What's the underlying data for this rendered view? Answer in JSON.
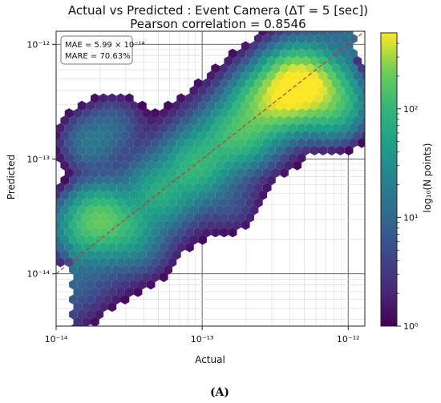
{
  "chart_data": {
    "type": "heatmap",
    "subtype": "hexbin",
    "title": "Actual vs Predicted : Event Camera (ΔT = 5 [sec])",
    "subtitle": "Pearson correlation  = 0.8546",
    "xlabel": "Actual",
    "ylabel": "Predicted",
    "x_scale": "log",
    "y_scale": "log",
    "xlim": [
      1e-14,
      1.3e-12
    ],
    "ylim": [
      3.5e-15,
      1.3e-12
    ],
    "x_ticks": [
      {
        "value": 1e-14,
        "label": "10⁻¹⁴"
      },
      {
        "value": 1e-13,
        "label": "10⁻¹³"
      },
      {
        "value": 1e-12,
        "label": "10⁻¹²"
      }
    ],
    "y_ticks": [
      {
        "value": 1e-14,
        "label": "10⁻¹⁴"
      },
      {
        "value": 1e-13,
        "label": "10⁻¹³"
      },
      {
        "value": 1e-12,
        "label": "10⁻¹²"
      }
    ],
    "grid": true,
    "reference_line": {
      "kind": "y = x",
      "style": "dashed",
      "color": "#c0392b"
    },
    "annotation_lines": [
      "MAE = 5.99 × 10⁻¹⁴",
      "MARE = 70.63%"
    ],
    "colorbar": {
      "label": "log₁₀(N points)",
      "scale": "log",
      "min": 1,
      "max": 500,
      "ticks": [
        {
          "value": 1,
          "label": "10⁰"
        },
        {
          "value": 10,
          "label": "10¹"
        },
        {
          "value": 100,
          "label": "10²"
        }
      ],
      "colormap": "viridis"
    },
    "density_regions": [
      {
        "x": 2e-14,
        "y": 3e-14,
        "count": 150
      },
      {
        "x": 1.5e-14,
        "y": 2.5e-14,
        "count": 50
      },
      {
        "x": 3e-14,
        "y": 2.5e-14,
        "count": 60
      },
      {
        "x": 5e-14,
        "y": 5e-14,
        "count": 60
      },
      {
        "x": 8e-14,
        "y": 7.5e-14,
        "count": 50
      },
      {
        "x": 1e-13,
        "y": 1e-13,
        "count": 60
      },
      {
        "x": 1.5e-13,
        "y": 1.5e-13,
        "count": 70
      },
      {
        "x": 2e-13,
        "y": 1.8e-13,
        "count": 80
      },
      {
        "x": 2.5e-13,
        "y": 2.8e-13,
        "count": 150
      },
      {
        "x": 3.5e-13,
        "y": 3.5e-13,
        "count": 300
      },
      {
        "x": 4.5e-13,
        "y": 4.5e-13,
        "count": 500
      },
      {
        "x": 6e-13,
        "y": 4e-13,
        "count": 250
      },
      {
        "x": 8e-13,
        "y": 3e-13,
        "count": 100
      },
      {
        "x": 1.7e-14,
        "y": 1.4e-13,
        "count": 15
      },
      {
        "x": 2.5e-14,
        "y": 2e-13,
        "count": 8
      },
      {
        "x": 4e-14,
        "y": 1.5e-14,
        "count": 3
      },
      {
        "x": 1.6e-13,
        "y": 4e-14,
        "count": 4
      }
    ]
  },
  "footer": {
    "label": "(A)"
  }
}
